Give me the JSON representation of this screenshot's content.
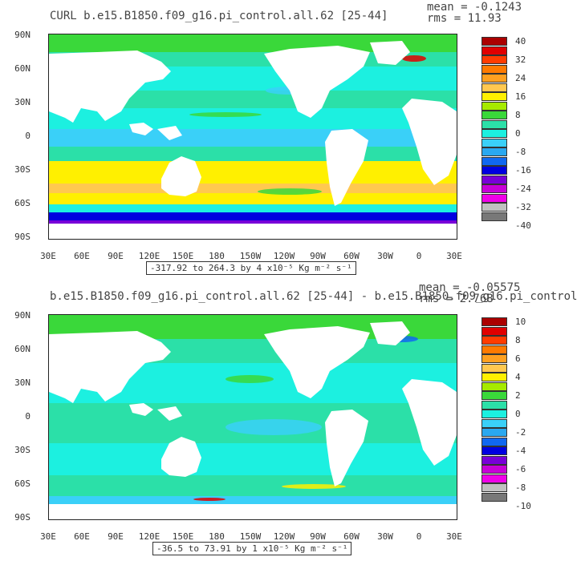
{
  "panel1": {
    "title": "CURL b.e15.B1850.f09_g16.pi_control.all.62 [25-44]",
    "mean": "mean = -0.1243",
    "rms": "rms = 11.93",
    "range_label": "-317.92 to 264.3 by 4 x10⁻⁵ Kg m⁻² s⁻¹",
    "colorbar_labels": [
      "40",
      "32",
      "24",
      "16",
      "8",
      "0",
      "-8",
      "-16",
      "-24",
      "-32",
      "-40"
    ]
  },
  "panel2": {
    "title": "b.e15.B1850.f09_g16.pi_control.all.62 [25-44] - b.e15.B1850.f09_g16.pi_control",
    "mean": "mean = -0.05575",
    "rms": "rms = 2.768",
    "range_label": "-36.5 to 73.91 by 1 x10⁻⁵ Kg m⁻² s⁻¹",
    "colorbar_labels": [
      "10",
      "8",
      "6",
      "4",
      "2",
      "0",
      "-2",
      "-4",
      "-6",
      "-8",
      "-10"
    ]
  },
  "axes": {
    "lat_ticks": [
      "90N",
      "60N",
      "30N",
      "0",
      "30S",
      "60S",
      "90S"
    ],
    "lon_ticks": [
      "30E",
      "60E",
      "90E",
      "120E",
      "150E",
      "180",
      "150W",
      "120W",
      "90W",
      "60W",
      "30W",
      "0",
      "30E"
    ]
  },
  "colors": {
    "palette": [
      "#ab0000",
      "#e00000",
      "#ff3c00",
      "#ff7a00",
      "#ffa020",
      "#ffc850",
      "#fff000",
      "#a6ea00",
      "#3ad83a",
      "#2be0a8",
      "#1cf0e0",
      "#3ad0f8",
      "#2aa8f0",
      "#1068f0",
      "#0000e0",
      "#7800d8",
      "#c800d8",
      "#f000e8",
      "#c0c0c0",
      "#787878"
    ],
    "ocean_base": "#3ae4c8",
    "land": "#ffffff"
  }
}
